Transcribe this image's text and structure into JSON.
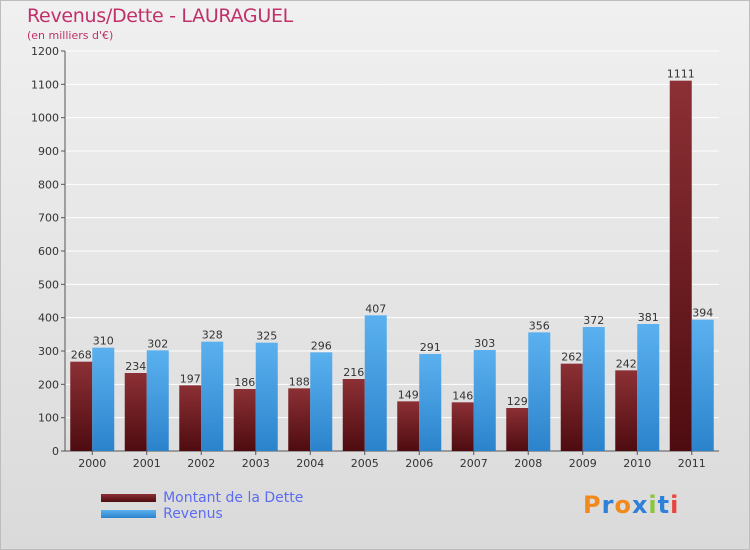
{
  "chart_data": {
    "type": "bar",
    "title": "Revenus/Dette - LAURAGUEL",
    "subtitle": "(en milliers d'€)",
    "xlabel": "",
    "ylabel": "",
    "ylim": [
      0,
      1200
    ],
    "yticks": [
      0,
      100,
      200,
      300,
      400,
      500,
      600,
      700,
      800,
      900,
      1000,
      1100,
      1200
    ],
    "grid": true,
    "legend_position": "bottom-left",
    "categories": [
      "2000",
      "2001",
      "2002",
      "2003",
      "2004",
      "2005",
      "2006",
      "2007",
      "2008",
      "2009",
      "2010",
      "2011"
    ],
    "series": [
      {
        "name": "Montant de la Dette",
        "color": "#7a1f26",
        "values": [
          268,
          234,
          197,
          186,
          188,
          216,
          149,
          146,
          129,
          262,
          242,
          1111
        ]
      },
      {
        "name": "Revenus",
        "color": "#4aa3e8",
        "values": [
          310,
          302,
          328,
          325,
          296,
          407,
          291,
          303,
          356,
          372,
          381,
          394
        ]
      }
    ]
  },
  "logo": {
    "text": "Proxiti",
    "letters": [
      {
        "char": "P",
        "color": "#f08a1c"
      },
      {
        "char": "r",
        "color": "#2f80d8"
      },
      {
        "char": "o",
        "color": "#f08a1c"
      },
      {
        "char": "x",
        "color": "#2f80d8"
      },
      {
        "char": "i",
        "color": "#8cc63f"
      },
      {
        "char": "t",
        "color": "#2f80d8"
      },
      {
        "char": "i",
        "color": "#e8453c"
      }
    ]
  }
}
